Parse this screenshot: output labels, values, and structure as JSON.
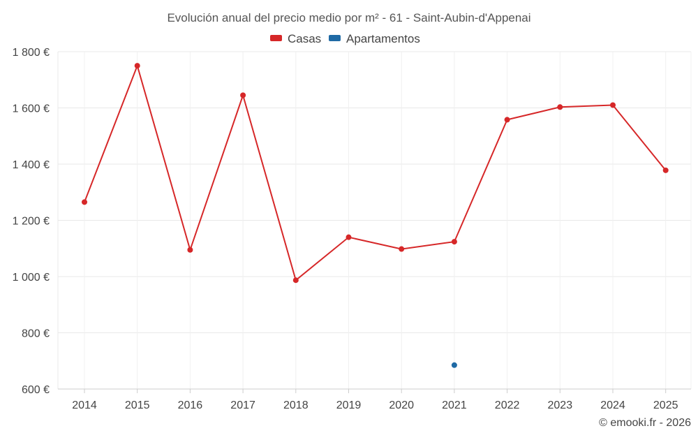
{
  "chart_data": {
    "type": "line",
    "title": "Evolución anual del precio medio por m² - 61 - Saint-Aubin-d'Appenai",
    "categories": [
      "2014",
      "2015",
      "2016",
      "2017",
      "2018",
      "2019",
      "2020",
      "2021",
      "2022",
      "2023",
      "2024",
      "2025"
    ],
    "yticks": [
      "600 €",
      "800 €",
      "1 000 €",
      "1 200 €",
      "1 400 €",
      "1 600 €",
      "1 800 €"
    ],
    "ylim": [
      600,
      1800
    ],
    "grid": true,
    "legend_position": "top-center",
    "series": [
      {
        "name": "Casas",
        "color": "#d62728",
        "values": [
          1265,
          1750,
          1095,
          1645,
          987,
          1140,
          1098,
          1124,
          1558,
          1603,
          1610,
          1378
        ]
      },
      {
        "name": "Apartamentos",
        "color": "#1f6aa5",
        "values": [
          null,
          null,
          null,
          null,
          null,
          null,
          null,
          685,
          null,
          null,
          null,
          null
        ]
      }
    ]
  },
  "credit": "© emooki.fr - 2026"
}
